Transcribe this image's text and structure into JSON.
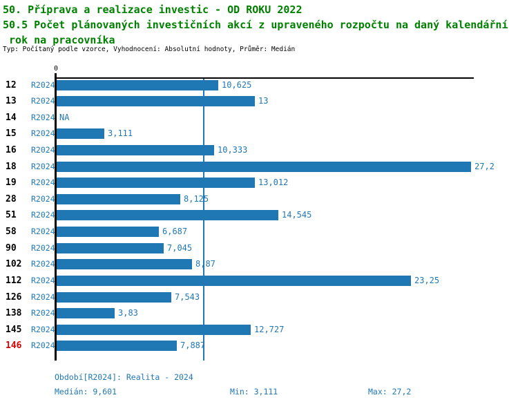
{
  "title": {
    "line1": "50. Příprava a realizace investic - OD ROKU 2022",
    "line2": "50.5 Počet plánovaných investičních akcí z upraveného rozpočtu na daný kalendářní",
    "line3": " rok na pracovníka",
    "meta": "Typ: Počítaný podle vzorce, Vyhodnocení: Absolutní hodnoty, Průměr: Medián"
  },
  "chart_data": {
    "type": "bar",
    "orientation": "horizontal",
    "title": "50.5 Počet plánovaných investičních akcí z upraveného rozpočtu na daný kalendářní rok na pracovníka",
    "categories": [
      "12",
      "13",
      "14",
      "15",
      "16",
      "18",
      "19",
      "28",
      "51",
      "58",
      "90",
      "102",
      "112",
      "126",
      "138",
      "145",
      "146"
    ],
    "series": [
      {
        "name": "R2024",
        "values": [
          10.625,
          13,
          null,
          3.111,
          10.333,
          27.2,
          13.012,
          8.125,
          14.545,
          6.687,
          7.045,
          8.87,
          23.25,
          7.543,
          3.83,
          12.727,
          7.887
        ]
      }
    ],
    "value_labels": [
      "10,625",
      "13",
      "NA",
      "3,111",
      "10,333",
      "27,2",
      "13,012",
      "8,125",
      "14,545",
      "6,687",
      "7,045",
      "8,87",
      "23,25",
      "7,543",
      "3,83",
      "12,727",
      "7,887"
    ],
    "period_label": "R2024",
    "na_label": "NA",
    "highlight_category": "146",
    "x_axis_tick": "0",
    "xlim": [
      0,
      27.2
    ],
    "median_line_value": 9.601,
    "grid": "off",
    "legend": "none",
    "bar_color": "#1f77b4",
    "median_line_color": "#1f77b4",
    "highlight_color": "#dc0000",
    "title_color": "#008000",
    "median": 9.601,
    "min": 3.111,
    "max": 27.2
  },
  "footer": {
    "period": "Období[R2024]: Realita - 2024",
    "median": "Medián: 9,601",
    "min": "Min: 3,111",
    "max": "Max: 27,2"
  }
}
